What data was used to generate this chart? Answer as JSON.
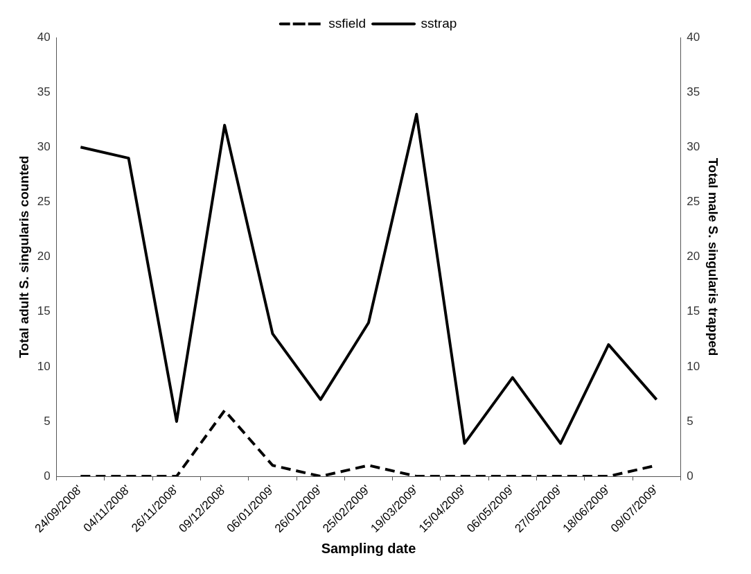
{
  "chart_data": {
    "type": "line",
    "xlabel": "Sampling date",
    "ylabel": "Total adult S. singularis counted",
    "y2label": "Total male S. singularis trapped",
    "categories": [
      "24/09/2008'",
      "04/11/2008'",
      "26/11/2008'",
      "09/12/2008'",
      "06/01/2009'",
      "26/01/2009'",
      "25/02/2009'",
      "19/03/2009'",
      "15/04/2009'",
      "06/05/2009'",
      "27/05/2009'",
      "18/06/2009'",
      "09/07/2009'"
    ],
    "series": [
      {
        "name": "ssfield",
        "color": "#000000",
        "line_style": "dashed",
        "values": [
          0,
          0,
          0,
          6,
          1,
          0,
          1,
          0,
          0,
          0,
          0,
          0,
          1
        ]
      },
      {
        "name": "sstrap",
        "color": "#000000",
        "line_style": "solid",
        "axis": "y2",
        "values": [
          30,
          29,
          5,
          32,
          13,
          7,
          14,
          33,
          3,
          9,
          3,
          12,
          7
        ]
      }
    ],
    "ylim": [
      0,
      40
    ],
    "yticks": [
      0,
      5,
      10,
      15,
      20,
      25,
      30,
      35,
      40
    ],
    "y2lim": [
      0,
      40
    ],
    "y2ticks": [
      0,
      5,
      10,
      15,
      20,
      25,
      30,
      35,
      40
    ],
    "grid": false,
    "legend": "top",
    "marker": "none"
  }
}
